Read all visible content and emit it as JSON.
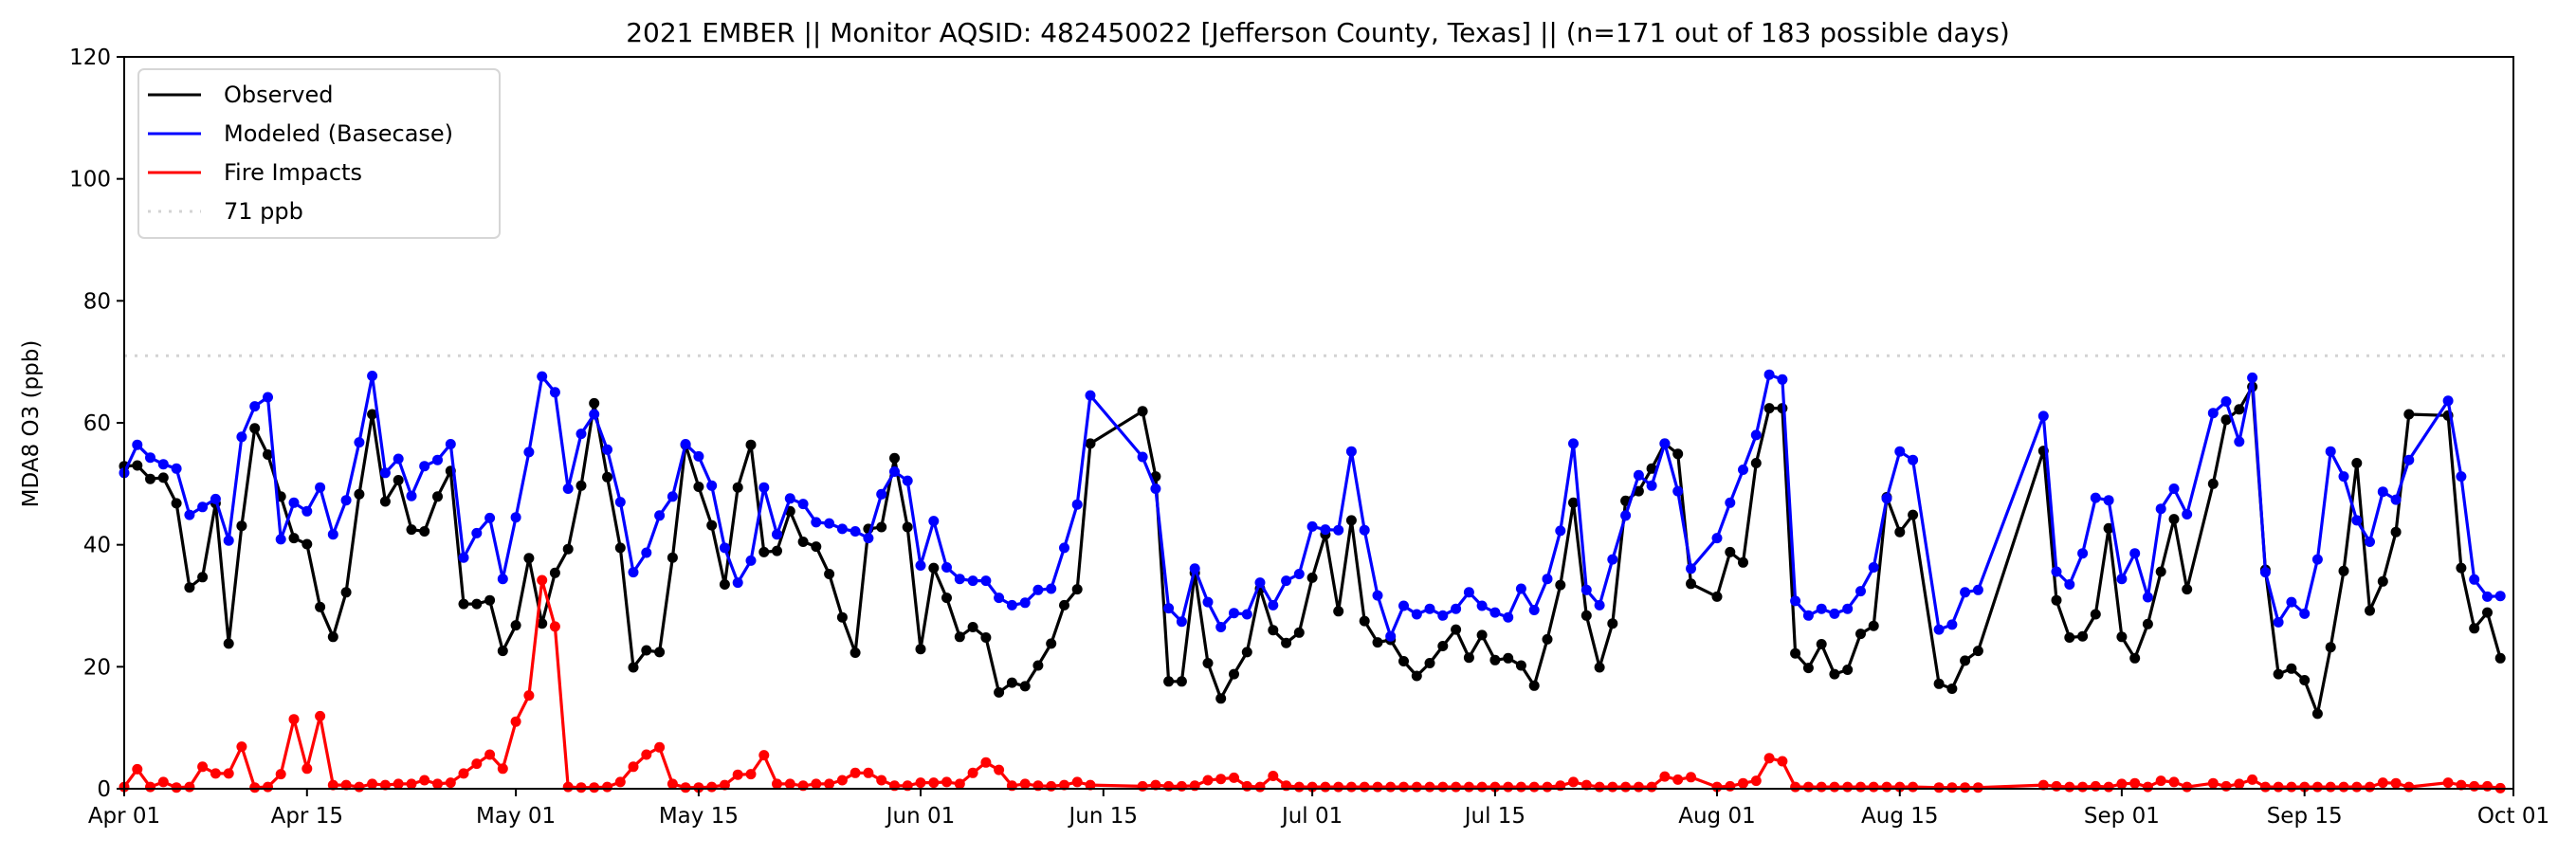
{
  "chart_data": {
    "type": "line",
    "title": "2021 EMBER || Monitor AQSID: 482450022 [Jefferson County, Texas] || (n=171 out of 183 possible days)",
    "xlabel": "",
    "ylabel": "MDA8 O3 (ppb)",
    "x_start": "2021-04-01",
    "x_days": 183,
    "ylim": [
      0,
      120
    ],
    "yticks": [
      "0",
      "20",
      "40",
      "60",
      "80",
      "100",
      "120"
    ],
    "xticks": [
      {
        "day": 0,
        "label": "Apr 01"
      },
      {
        "day": 14,
        "label": "Apr 15"
      },
      {
        "day": 30,
        "label": "May 01"
      },
      {
        "day": 44,
        "label": "May 15"
      },
      {
        "day": 61,
        "label": "Jun 01"
      },
      {
        "day": 75,
        "label": "Jun 15"
      },
      {
        "day": 91,
        "label": "Jul 01"
      },
      {
        "day": 105,
        "label": "Jul 15"
      },
      {
        "day": 122,
        "label": "Aug 01"
      },
      {
        "day": 136,
        "label": "Aug 15"
      },
      {
        "day": 153,
        "label": "Sep 01"
      },
      {
        "day": 167,
        "label": "Sep 15"
      },
      {
        "day": 183,
        "label": "Oct 01"
      }
    ],
    "grid": false,
    "legend_position": "top-left",
    "legend": [
      "Observed",
      "Modeled (Basecase)",
      "Fire Impacts",
      "71 ppb"
    ],
    "threshold": {
      "value": 71,
      "label": "71 ppb",
      "color": "#d3d3d3"
    },
    "series": [
      {
        "name": "Observed",
        "color": "#000000",
        "values": [
          52.9,
          53,
          50.8,
          51,
          46.8,
          33,
          34.7,
          46.8,
          23.8,
          43.1,
          59.1,
          54.8,
          47.9,
          41.1,
          40.1,
          29.8,
          24.9,
          32.2,
          48.3,
          61.4,
          47.1,
          50.6,
          42.5,
          42.2,
          47.9,
          52.1,
          30.3,
          30.3,
          30.9,
          22.6,
          26.8,
          37.8,
          27.1,
          35.4,
          39.3,
          49.7,
          63.2,
          51.1,
          39.5,
          19.9,
          22.7,
          22.4,
          37.9,
          56.4,
          49.5,
          43.2,
          33.5,
          49.4,
          56.4,
          38.8,
          39,
          45.5,
          40.5,
          39.7,
          35.2,
          28.1,
          22.3,
          42.6,
          42.9,
          54.2,
          42.9,
          22.9,
          36.2,
          31.3,
          24.9,
          26.5,
          24.8,
          15.8,
          17.4,
          16.8,
          20.2,
          23.8,
          30.1,
          32.7,
          56.6,
          null,
          null,
          null,
          61.9,
          51.2,
          17.6,
          17.6,
          35.4,
          20.6,
          14.8,
          18.8,
          22.4,
          32.8,
          26,
          23.9,
          25.6,
          34.6,
          41.7,
          29.1,
          44,
          27.5,
          24,
          24.4,
          20.9,
          18.5,
          20.6,
          23.4,
          26.1,
          21.5,
          25.2,
          21.1,
          21.4,
          20.2,
          16.9,
          24.5,
          33.4,
          46.9,
          28.4,
          19.9,
          27.1,
          47.2,
          48.8,
          52.5,
          56.6,
          54.9,
          33.6,
          null,
          31.5,
          38.8,
          37.1,
          53.4,
          62.4,
          62.4,
          22.2,
          19.8,
          23.7,
          18.8,
          19.5,
          25.4,
          26.7,
          47.8,
          42.1,
          44.9,
          null,
          17.2,
          16.4,
          21,
          22.6,
          null,
          null,
          null,
          null,
          55.4,
          30.9,
          24.8,
          25,
          28.6,
          42.7,
          24.9,
          21.4,
          27,
          35.6,
          44.2,
          32.7,
          null,
          50,
          60.5,
          62.2,
          65.9,
          35.9,
          18.8,
          19.7,
          17.8,
          12.3,
          23.2,
          35.7,
          53.4,
          29.2,
          34,
          42.1,
          61.4,
          null,
          null,
          61.2,
          36.2,
          26.3,
          28.9,
          21.4
        ]
      },
      {
        "name": "Modeled (Basecase)",
        "color": "#0000ff",
        "values": [
          51.8,
          56.4,
          54.3,
          53.2,
          52.5,
          44.9,
          46.2,
          47.5,
          40.7,
          57.7,
          62.7,
          64.2,
          40.9,
          46.9,
          45.5,
          49.4,
          41.7,
          47.3,
          56.8,
          67.7,
          51.8,
          54.1,
          48,
          52.9,
          53.9,
          56.5,
          37.9,
          41.9,
          44.4,
          34.4,
          44.5,
          55.2,
          67.6,
          65,
          49.2,
          58.2,
          61.4,
          55.6,
          47,
          35.5,
          38.7,
          44.8,
          47.9,
          56.5,
          54.5,
          49.7,
          39.5,
          33.8,
          37.4,
          49.4,
          41.7,
          47.6,
          46.7,
          43.7,
          43.5,
          42.6,
          42.2,
          41.1,
          48.3,
          52,
          50.5,
          36.6,
          43.9,
          36.3,
          34.4,
          34.1,
          34.1,
          31.3,
          30.1,
          30.5,
          32.6,
          32.8,
          39.5,
          46.6,
          64.5,
          null,
          null,
          null,
          54.4,
          49.2,
          29.6,
          27.4,
          36.1,
          30.6,
          26.5,
          28.8,
          28.6,
          33.8,
          30.1,
          34.1,
          35.2,
          43,
          42.5,
          42.4,
          55.3,
          42.4,
          31.7,
          25,
          30,
          28.6,
          29.5,
          28.4,
          29.5,
          32.2,
          30,
          28.9,
          28.1,
          32.8,
          29.3,
          34.4,
          42.3,
          56.6,
          32.6,
          30.1,
          37.6,
          44.8,
          51.4,
          49.7,
          56.6,
          48.8,
          36.1,
          null,
          41.1,
          46.9,
          52.3,
          58,
          67.9,
          67.1,
          30.8,
          28.4,
          29.5,
          28.7,
          29.5,
          32.4,
          36.3,
          47.6,
          55.3,
          53.9,
          null,
          26.1,
          26.9,
          32.2,
          32.6,
          null,
          null,
          null,
          null,
          61.1,
          35.6,
          33.5,
          38.6,
          47.7,
          47.3,
          34.4,
          38.6,
          31.4,
          45.9,
          49.2,
          45,
          null,
          61.6,
          63.5,
          56.9,
          67.4,
          35.5,
          27.3,
          30.6,
          28.7,
          37.6,
          55.3,
          51.2,
          44,
          40.5,
          48.7,
          47.4,
          53.9,
          null,
          null,
          63.6,
          51.2,
          34.3,
          31.5,
          31.6
        ]
      },
      {
        "name": "Fire Impacts",
        "color": "#ff0000",
        "values": [
          0.3,
          3.2,
          0.3,
          1.1,
          0.2,
          0.3,
          3.6,
          2.5,
          2.5,
          6.9,
          0.2,
          0.3,
          2.4,
          11.4,
          3.3,
          11.9,
          0.6,
          0.6,
          0.3,
          0.8,
          0.6,
          0.8,
          0.8,
          1.4,
          0.8,
          1,
          2.5,
          4.1,
          5.6,
          3.3,
          11,
          15.3,
          34.2,
          26.6,
          0.3,
          0.2,
          0.2,
          0.3,
          1.1,
          3.6,
          5.6,
          6.8,
          0.8,
          0.2,
          0.2,
          0.3,
          0.6,
          2.3,
          2.4,
          5.5,
          0.8,
          0.8,
          0.5,
          0.8,
          0.8,
          1.4,
          2.6,
          2.6,
          1.4,
          0.5,
          0.5,
          1,
          1,
          1.1,
          0.8,
          2.6,
          4.3,
          3.1,
          0.5,
          0.8,
          0.5,
          0.4,
          0.6,
          1.1,
          0.6,
          null,
          null,
          null,
          0.4,
          0.6,
          0.4,
          0.4,
          0.5,
          1.4,
          1.6,
          1.8,
          0.4,
          0.3,
          2.1,
          0.5,
          0.3,
          0.3,
          0.3,
          0.3,
          0.3,
          0.3,
          0.3,
          0.3,
          0.3,
          0.3,
          0.3,
          0.3,
          0.3,
          0.3,
          0.3,
          0.3,
          0.3,
          0.3,
          0.3,
          0.3,
          0.5,
          1.1,
          0.6,
          0.3,
          0.3,
          0.3,
          0.3,
          0.3,
          2,
          1.5,
          1.9,
          null,
          0.3,
          0.4,
          0.9,
          1.3,
          5,
          4.5,
          0.3,
          0.3,
          0.3,
          0.3,
          0.3,
          0.3,
          0.3,
          0.3,
          0.3,
          0.3,
          null,
          0.2,
          0.2,
          0.2,
          0.2,
          null,
          null,
          null,
          null,
          0.6,
          0.4,
          0.3,
          0.3,
          0.4,
          0.3,
          0.8,
          0.9,
          0.3,
          1.3,
          1.1,
          0.3,
          null,
          0.9,
          0.4,
          0.8,
          1.5,
          0.3,
          0.3,
          0.3,
          0.3,
          0.3,
          0.3,
          0.3,
          0.3,
          0.3,
          1,
          0.9,
          0.3,
          null,
          null,
          1,
          0.6,
          0.4,
          0.4,
          0.1
        ]
      }
    ]
  }
}
